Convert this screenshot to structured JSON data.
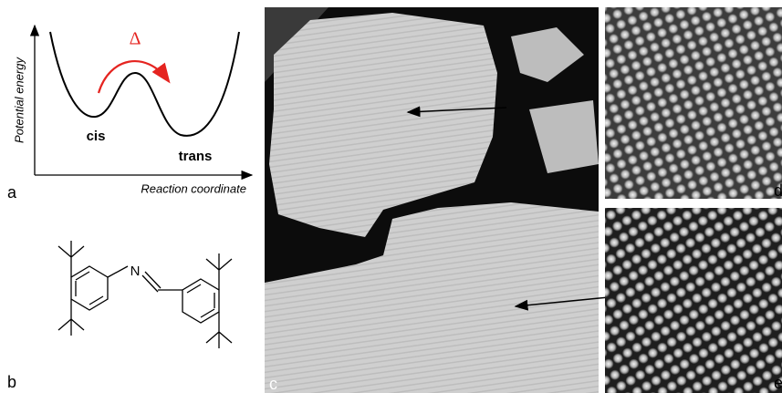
{
  "panel_a": {
    "y_axis_label": "Potential energy",
    "x_axis_label": "Reaction coordinate",
    "barrier_label": "Δ",
    "left_state": "cis",
    "right_state": "trans"
  },
  "molecule": {
    "atom_label": "N"
  },
  "panel_labels": [
    "a",
    "b",
    "c",
    "d",
    "e"
  ]
}
